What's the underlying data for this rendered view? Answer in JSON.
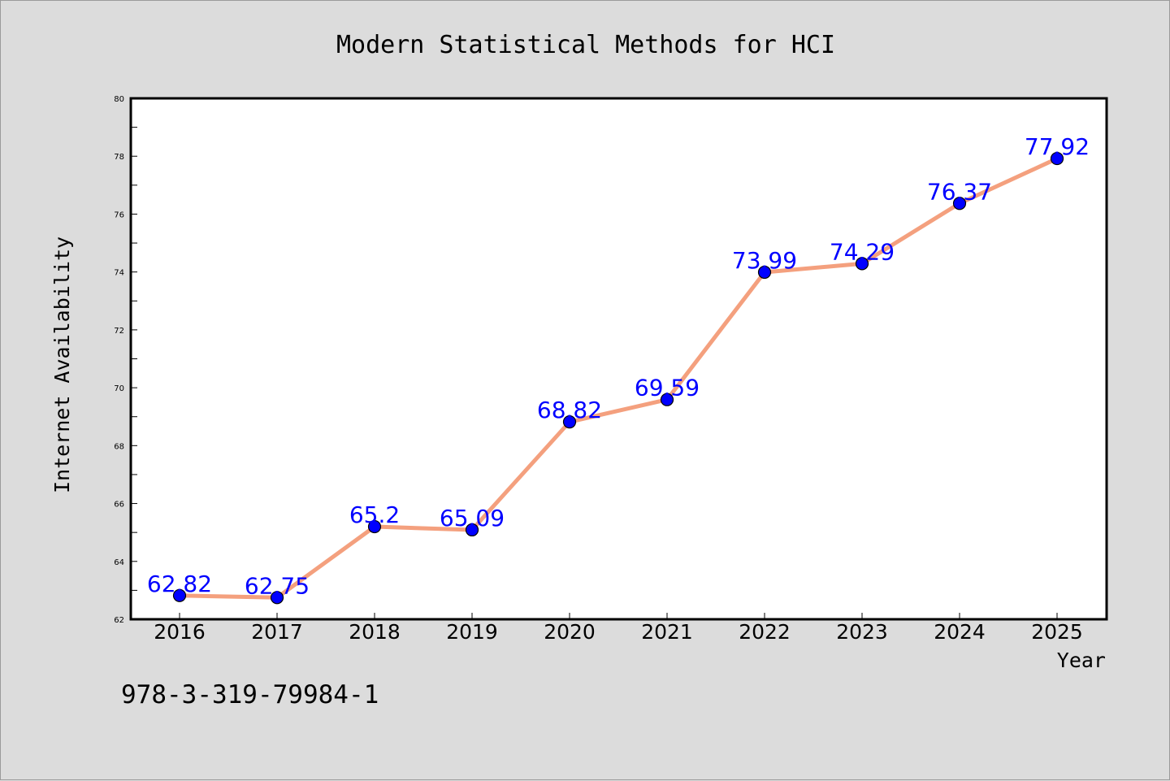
{
  "chart_data": {
    "type": "line",
    "title": "Modern Statistical Methods for HCI",
    "xlabel": "Year",
    "ylabel": "Internet Availability",
    "categories": [
      "2016",
      "2017",
      "2018",
      "2019",
      "2020",
      "2021",
      "2022",
      "2023",
      "2024",
      "2025"
    ],
    "series": [
      {
        "values": [
          62.82,
          62.75,
          65.2,
          65.09,
          68.82,
          69.59,
          73.99,
          74.29,
          76.37,
          77.92
        ]
      }
    ],
    "data_labels": [
      "62.82",
      "62.75",
      "65.2",
      "65.09",
      "68.82",
      "69.59",
      "73.99",
      "74.29",
      "76.37",
      "77.92"
    ],
    "ylim": [
      62,
      80
    ],
    "yticks": [
      62,
      64,
      66,
      68,
      70,
      72,
      74,
      76,
      78,
      80
    ],
    "grid": false,
    "line_color": "#f4a07e",
    "marker_color": "#0000ff",
    "label_color": "#0000ff",
    "background": "#dcdcdc",
    "plot_background": "#ffffff"
  },
  "annotation": "978-3-319-79984-1"
}
